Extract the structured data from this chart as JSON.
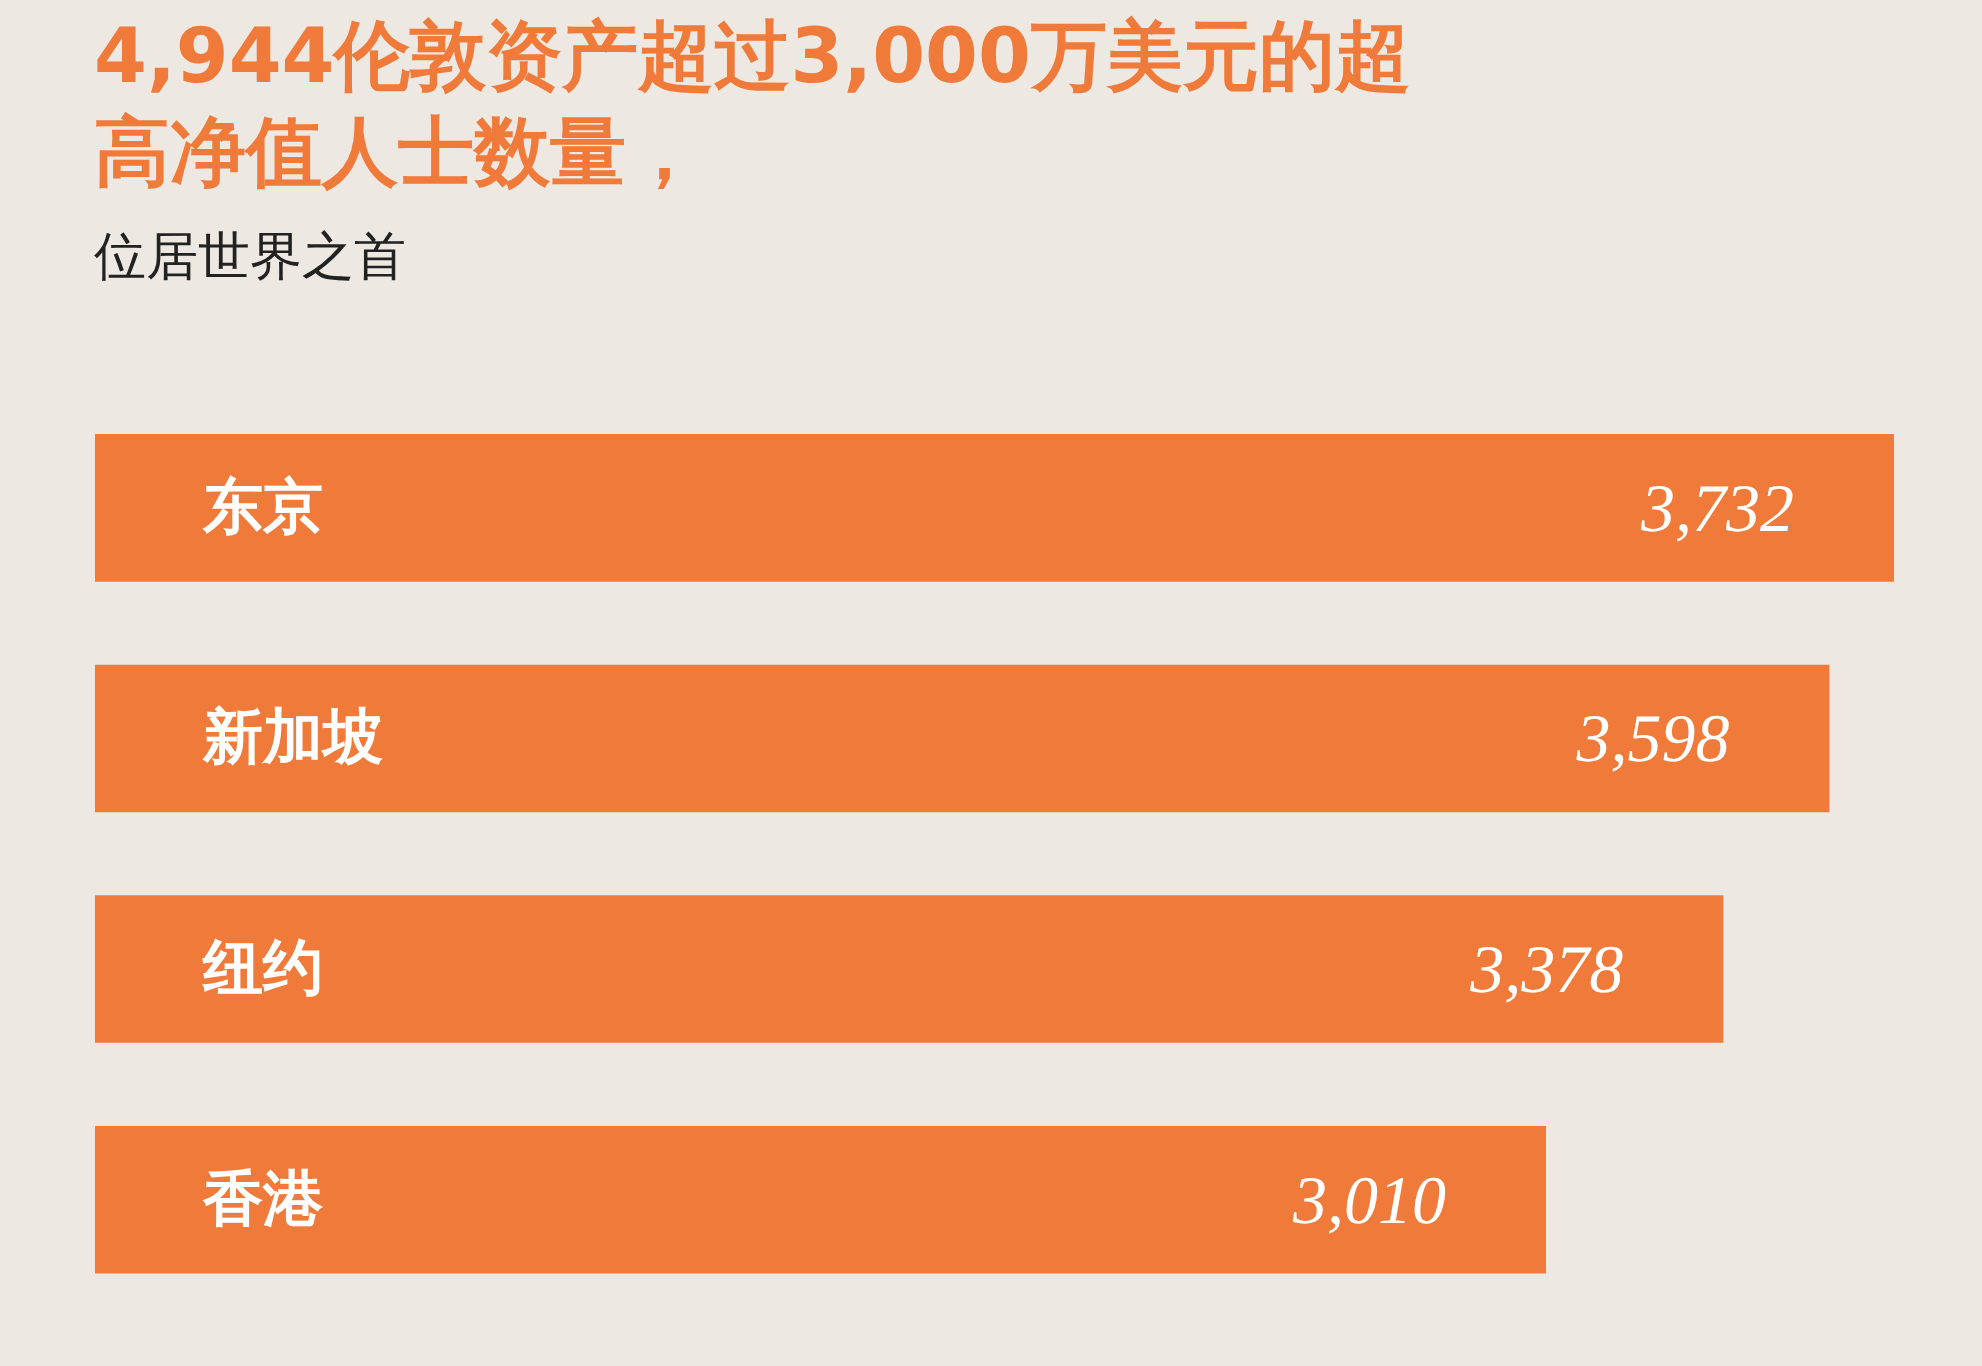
{
  "chart_data": {
    "type": "bar",
    "orientation": "horizontal",
    "title": "4,944伦敦资产超过3,000万美元的超高净值人士数量，",
    "subtitle": "位居世界之首",
    "categories": [
      "东京",
      "新加坡",
      "纽约",
      "香港"
    ],
    "values": [
      3732,
      3598,
      3378,
      3010
    ],
    "value_labels": [
      "3,732",
      "3,598",
      "3,378",
      "3,010"
    ],
    "color": "#f07a3a",
    "grid": false
  }
}
